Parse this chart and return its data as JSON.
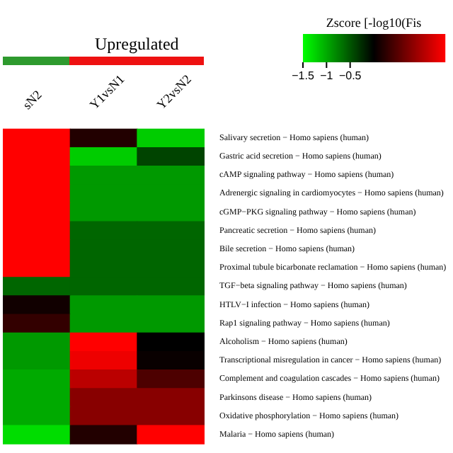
{
  "chart_data": {
    "type": "heatmap",
    "categories": [
      "sN2",
      "Y1vsN1",
      "Y2vsN2"
    ],
    "y_categories": [
      "Salivary secretion − Homo sapiens (human)",
      "Gastric acid secretion − Homo sapiens (human)",
      "cAMP signaling pathway − Homo sapiens (human)",
      "Adrenergic signaling in cardiomyocytes − Homo sapiens (human)",
      "cGMP−PKG signaling pathway − Homo sapiens (human)",
      "Pancreatic secretion − Homo sapiens (human)",
      "Bile secretion − Homo sapiens (human)",
      "Proximal tubule bicarbonate reclamation − Homo sapiens (human)",
      "TGF−beta signaling pathway − Homo sapiens (human)",
      "HTLV−I infection − Homo sapiens (human)",
      "Rap1 signaling pathway − Homo sapiens (human)",
      "Alcoholism − Homo sapiens (human)",
      "Transcriptional misregulation in cancer − Homo sapiens (human)",
      "Complement and coagulation cascades − Homo sapiens (human)",
      "Parkinsons disease − Homo sapiens (human)",
      "Oxidative phosphorylation − Homo sapiens (human)",
      "Malaria − Homo sapiens (human)"
    ],
    "cells": [
      [
        1.5,
        0.2,
        -1.2
      ],
      [
        1.5,
        -1.2,
        -0.4
      ],
      [
        1.5,
        -0.9,
        -0.9
      ],
      [
        1.5,
        -0.9,
        -0.9
      ],
      [
        1.5,
        -0.9,
        -0.9
      ],
      [
        1.5,
        -0.6,
        -0.6
      ],
      [
        1.5,
        -0.6,
        -0.6
      ],
      [
        1.5,
        -0.6,
        -0.6
      ],
      [
        -0.6,
        -0.6,
        -0.6
      ],
      [
        0.1,
        -0.9,
        -0.9
      ],
      [
        0.3,
        -0.9,
        -0.9
      ],
      [
        -0.9,
        1.5,
        0
      ],
      [
        -0.9,
        1.4,
        0.05
      ],
      [
        -1,
        1.1,
        0.45
      ],
      [
        -1,
        0.8,
        0.8
      ],
      [
        -1,
        0.8,
        0.8
      ],
      [
        -1.3,
        0.2,
        1.5
      ]
    ],
    "clim": [
      -1.5,
      1.5
    ],
    "cticks": [
      -1.5,
      -1,
      -0.5
    ],
    "clabel": "Zscore [-log10(Fis",
    "annotations": [
      "Upregulated"
    ]
  }
}
